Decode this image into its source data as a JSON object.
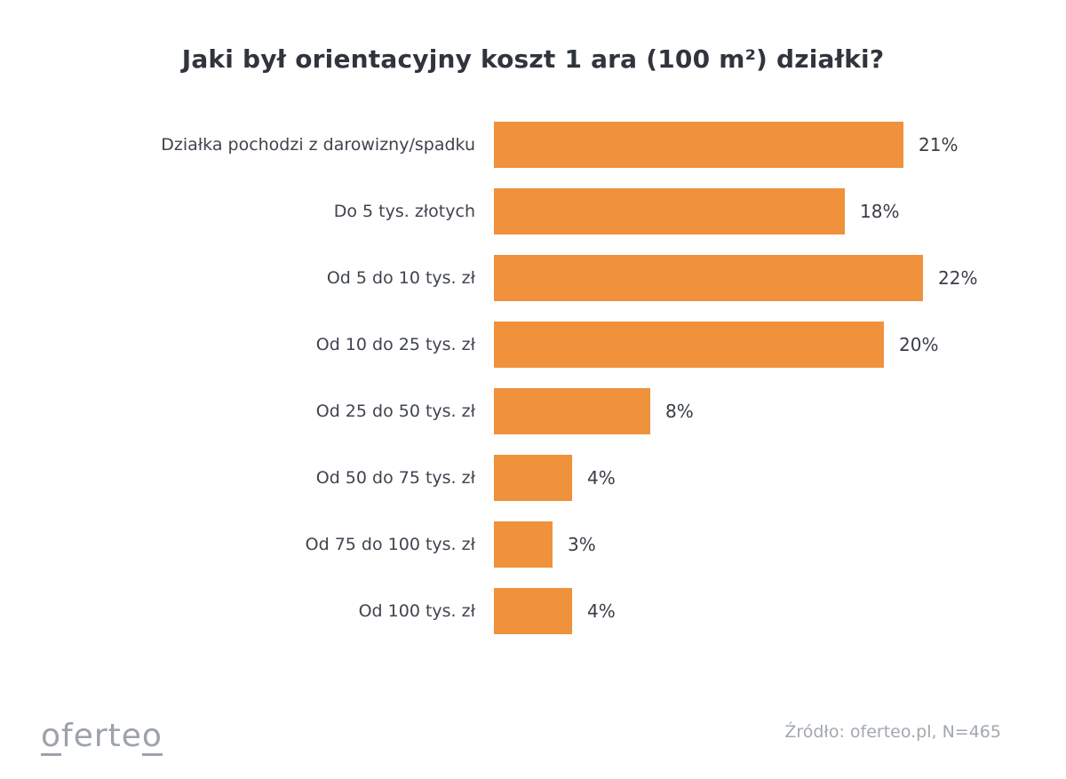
{
  "chart_data": {
    "type": "bar",
    "orientation": "horizontal",
    "title": "Jaki był orientacyjny koszt 1 ara (100 m²) działki?",
    "categories": [
      "Działka pochodzi z darowizny/spadku",
      "Do 5 tys. złotych",
      "Od 5 do 10 tys. zł",
      "Od 10 do 25 tys. zł",
      "Od 25 do 50 tys. zł",
      "Od 50 do 75 tys. zł",
      "Od 75 do 100 tys. zł",
      "Od 100 tys. zł"
    ],
    "values": [
      21,
      18,
      22,
      20,
      8,
      4,
      3,
      4
    ],
    "value_labels": [
      "21%",
      "18%",
      "22%",
      "20%",
      "8%",
      "4%",
      "3%",
      "4%"
    ],
    "xlim": [
      0,
      22
    ],
    "bar_color": "#f0913c",
    "grid": false,
    "legend": false
  },
  "footer": {
    "logo": {
      "first": "o",
      "mid": "ferte",
      "last": "o"
    },
    "source": "Źródło: oferteo.pl, N=465"
  }
}
